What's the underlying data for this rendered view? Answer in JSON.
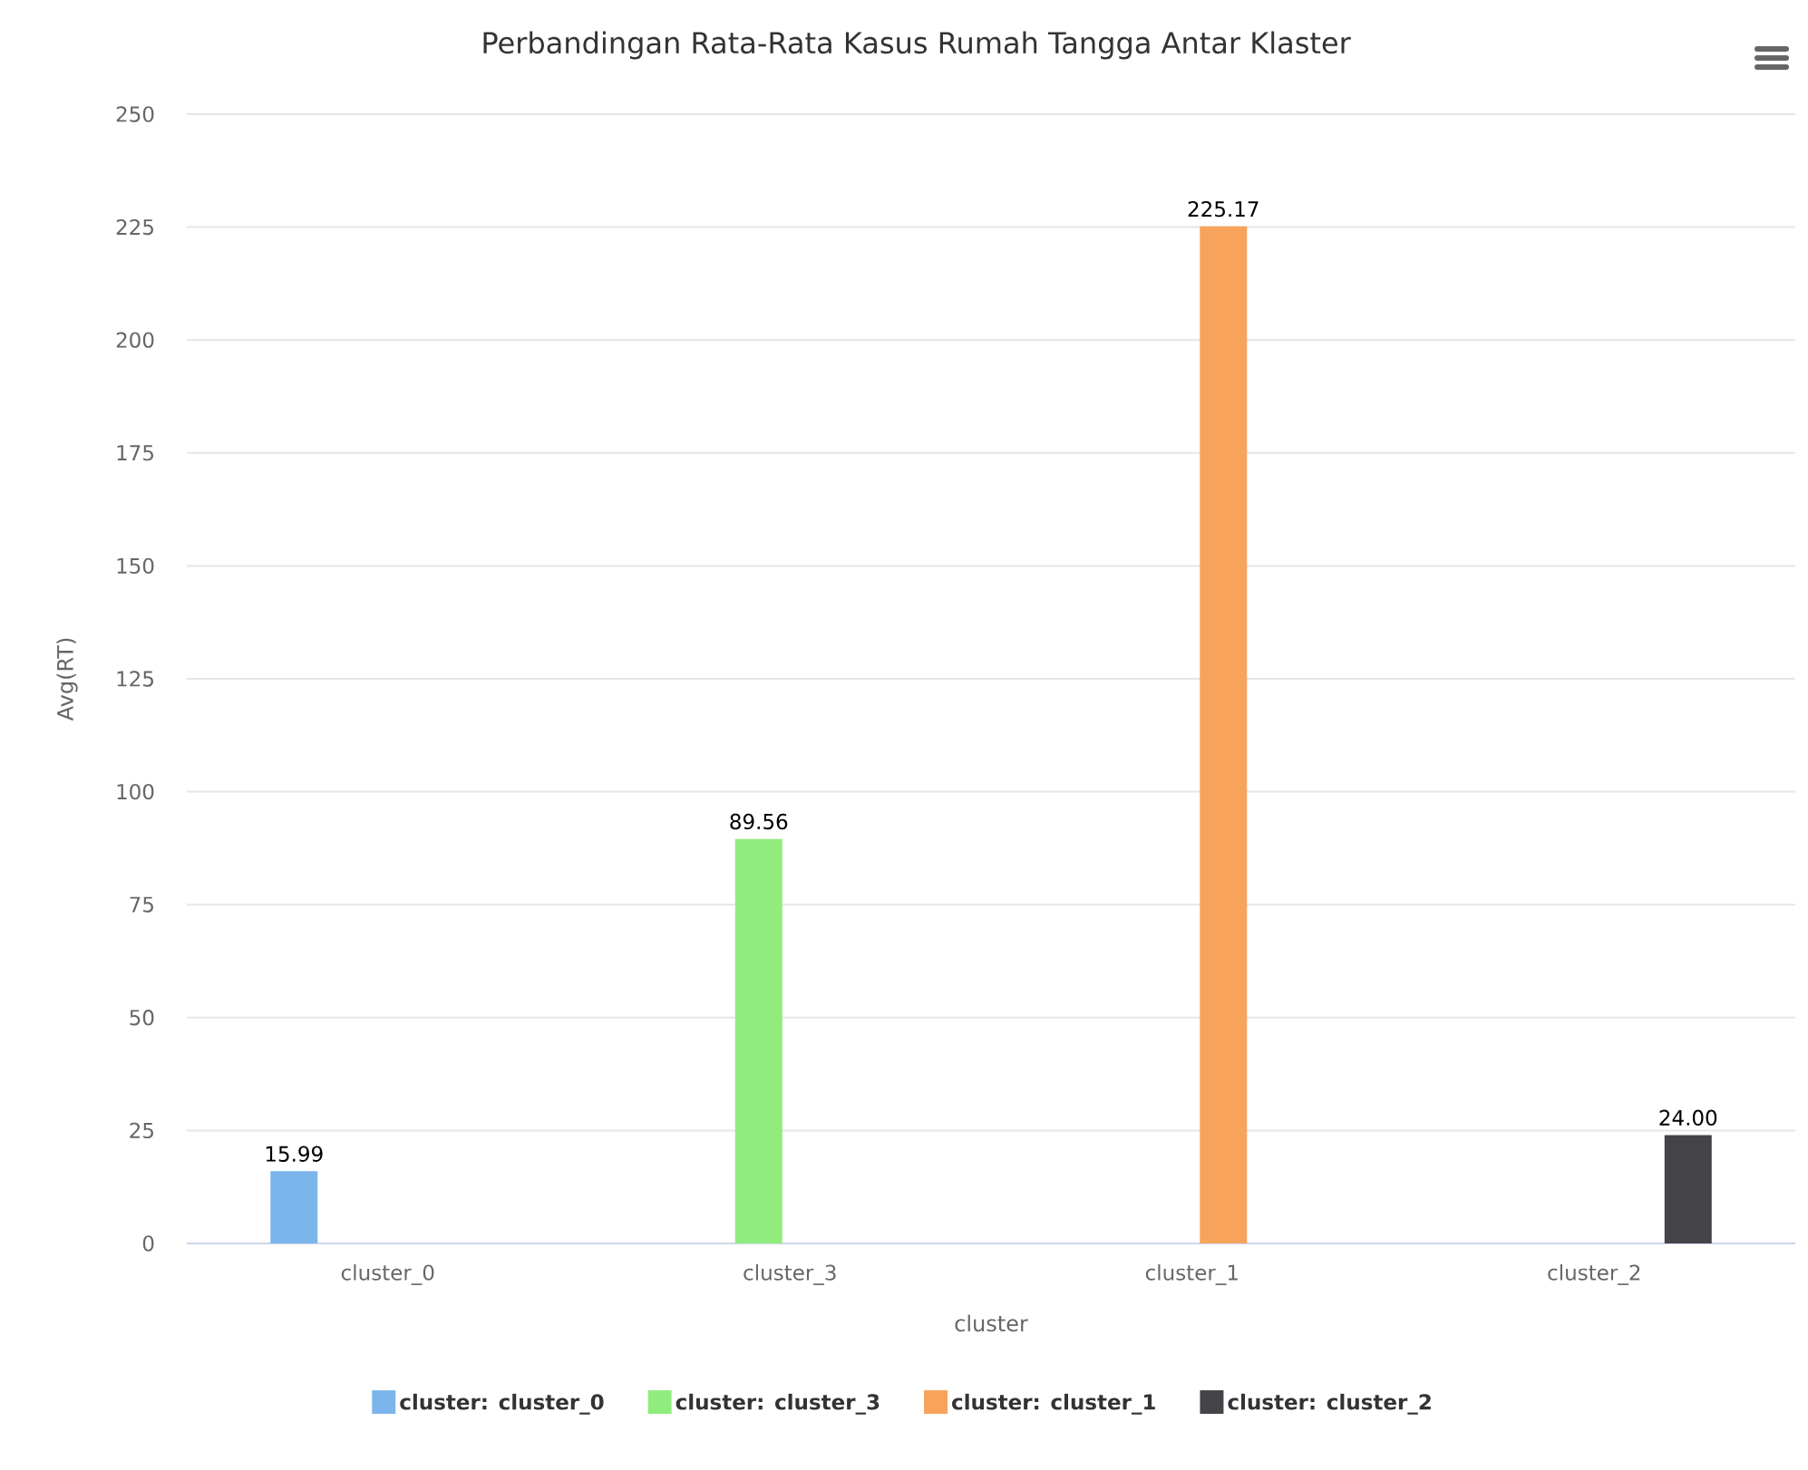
{
  "chart_data": {
    "type": "bar",
    "title": "Perbandingan Rata-Rata Kasus Rumah Tangga Antar Klaster",
    "xlabel": "cluster",
    "ylabel": "Avg(RT)",
    "categories": [
      "cluster_0",
      "cluster_3",
      "cluster_1",
      "cluster_2"
    ],
    "series": [
      {
        "name": "cluster: cluster_0",
        "color": "#7cb5ec",
        "values": [
          15.99,
          null,
          null,
          null
        ],
        "value_labels": [
          "15.99",
          null,
          null,
          null
        ]
      },
      {
        "name": "cluster: cluster_3",
        "color": "#90ed7d",
        "values": [
          null,
          89.56,
          null,
          null
        ],
        "value_labels": [
          null,
          "89.56",
          null,
          null
        ]
      },
      {
        "name": "cluster: cluster_1",
        "color": "#f7a35c",
        "values": [
          null,
          null,
          225.17,
          null
        ],
        "value_labels": [
          null,
          null,
          "225.17",
          null
        ]
      },
      {
        "name": "cluster: cluster_2",
        "color": "#434348",
        "values": [
          null,
          null,
          null,
          24
        ],
        "value_labels": [
          null,
          null,
          null,
          "24.00"
        ]
      }
    ],
    "ylim": [
      0,
      250
    ],
    "yticks": [
      0,
      25,
      50,
      75,
      100,
      125,
      150,
      175,
      200,
      225,
      250
    ],
    "grid": "y",
    "legend": "bottom"
  }
}
